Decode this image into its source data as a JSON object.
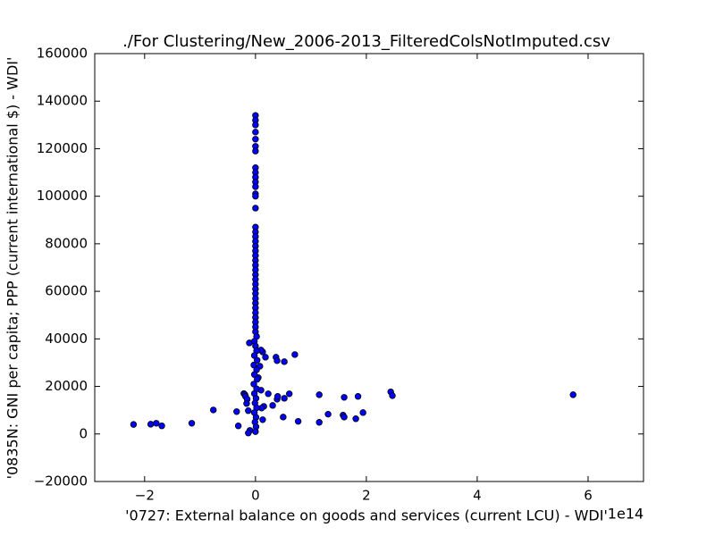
{
  "chart_data": {
    "type": "scatter",
    "title": "./For Clustering/New_2006-2013_FilteredColsNotImputed.csv",
    "x_label": "'0727: External balance on goods and services  (current LCU) - WDI'",
    "y_label": "'0835N: GNI per capita; PPP  (current international $) - WDI'",
    "x_offset_label": "1e14",
    "color": "#0000ff",
    "xlim": [
      -2.9,
      7
    ],
    "ylim": [
      -20000,
      160000
    ],
    "xticks": [
      {
        "value": -2,
        "label": "−2"
      },
      0,
      2,
      4,
      6
    ],
    "yticks": [
      {
        "value": -20000,
        "label": "−20000"
      },
      0,
      20000,
      40000,
      60000,
      80000,
      100000,
      120000,
      140000,
      160000
    ],
    "grid": false,
    "x": [
      -2.2,
      -1.89,
      -1.79,
      -1.69,
      -1.15,
      -0.76,
      -0.34,
      -0.31,
      -0.21,
      -0.19,
      -0.18,
      -0.15,
      -0.16,
      -0.13,
      -0.1,
      -0.13,
      -0.11,
      0.18,
      0.08,
      0.23,
      0.31,
      0.15,
      0.39,
      0.4,
      0.52,
      0.37,
      0.39,
      0.52,
      0.71,
      0.61,
      0.5,
      0.77,
      1.15,
      1.15,
      1.31,
      1.6,
      1.58,
      1.6,
      1.81,
      1.85,
      1.94,
      2.44,
      2.47,
      5.73,
      0.13,
      0.11,
      0.05,
      0.1,
      0.13,
      0.1,
      0,
      0,
      0,
      0,
      0,
      0,
      0,
      0,
      0,
      0,
      0,
      0,
      0,
      0,
      0,
      0,
      0,
      0,
      0,
      0,
      0,
      0,
      0,
      0,
      0,
      0,
      0,
      0,
      0,
      0,
      0,
      0,
      0,
      0,
      0,
      0,
      0,
      0,
      0.02,
      -0.02,
      0,
      0.02,
      -0.02,
      0.03,
      -0.03,
      0.02,
      -0.02,
      0.03,
      -0.03,
      0.02,
      -0.02,
      0.01,
      -0.01,
      0.02,
      -0.02,
      0.01,
      -0.01,
      0.01,
      0
    ],
    "values": [
      4000,
      4100,
      4500,
      3400,
      4500,
      10100,
      9400,
      3400,
      17000,
      16500,
      15800,
      14600,
      12800,
      9800,
      1500,
      400,
      38300,
      32300,
      28500,
      16900,
      12000,
      11600,
      14600,
      15800,
      15000,
      32300,
      30800,
      30400,
      33400,
      16900,
      7100,
      5300,
      16500,
      4900,
      8300,
      15400,
      7900,
      7100,
      6400,
      15800,
      9000,
      17700,
      16100,
      16500,
      6000,
      10900,
      23700,
      18400,
      34500,
      35300,
      134000,
      132000,
      130000,
      127000,
      124000,
      121000,
      119000,
      112000,
      110000,
      108000,
      106000,
      104000,
      101000,
      100000,
      95000,
      87000,
      85000,
      83000,
      81000,
      79000,
      77000,
      75000,
      73000,
      71000,
      69000,
      67000,
      65000,
      63000,
      61000,
      59000,
      57000,
      55000,
      53000,
      51000,
      49000,
      47000,
      45000,
      43000,
      41000,
      39000,
      37000,
      35000,
      33000,
      31000,
      29000,
      27000,
      25000,
      23000,
      21000,
      19000,
      17000,
      15000,
      13000,
      11000,
      9000,
      7000,
      5000,
      3000,
      1000
    ]
  }
}
